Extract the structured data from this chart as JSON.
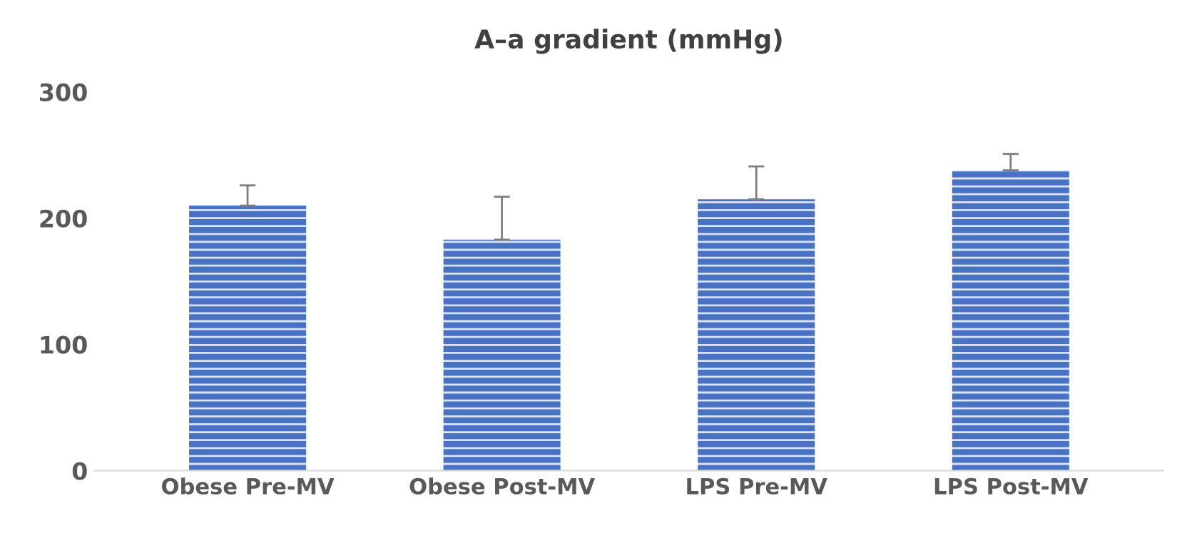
{
  "chart_data": {
    "type": "bar",
    "title": "A–a gradient (mmHg)",
    "categories": [
      "Obese Pre-MV",
      "Obese Post-MV",
      "LPS Pre-MV",
      "LPS Post-MV"
    ],
    "values": [
      210,
      183,
      215,
      238
    ],
    "errors": [
      [
        210,
        226
      ],
      [
        183,
        217
      ],
      [
        215,
        241
      ],
      [
        238,
        251
      ]
    ],
    "color": "#4a72c4",
    "ylim": [
      0,
      300
    ],
    "yticks": [
      0,
      100,
      200,
      300
    ],
    "grid": false
  }
}
